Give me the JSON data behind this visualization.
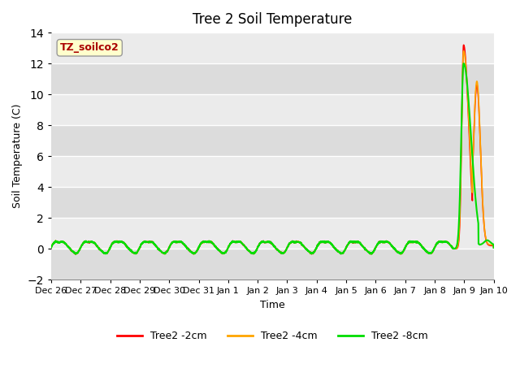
{
  "title": "Tree 2 Soil Temperature",
  "xlabel": "Time",
  "ylabel": "Soil Temperature (C)",
  "ylim": [
    -2,
    14
  ],
  "yticks": [
    -2,
    0,
    2,
    4,
    6,
    8,
    10,
    12,
    14
  ],
  "bg_color_dark": "#dcdcdc",
  "bg_color_light": "#ebebeb",
  "grid_color": "#ffffff",
  "series": {
    "Tree2 -2cm": {
      "color": "#ff0000"
    },
    "Tree2 -4cm": {
      "color": "#ffa500"
    },
    "Tree2 -8cm": {
      "color": "#00dd00"
    }
  },
  "annotation_box": {
    "text": "TZ_soilco2",
    "text_color": "#aa0000",
    "box_color": "#ffffcc",
    "edge_color": "#999999"
  },
  "x_labels": [
    "Dec 26",
    "Dec 27",
    "Dec 28",
    "Dec 29",
    "Dec 30",
    "Dec 31",
    "Jan 1",
    "Jan 2",
    "Jan 3",
    "Jan 4",
    "Jan 5",
    "Jan 6",
    "Jan 7",
    "Jan 8",
    "Jan 9",
    "Jan 10"
  ]
}
